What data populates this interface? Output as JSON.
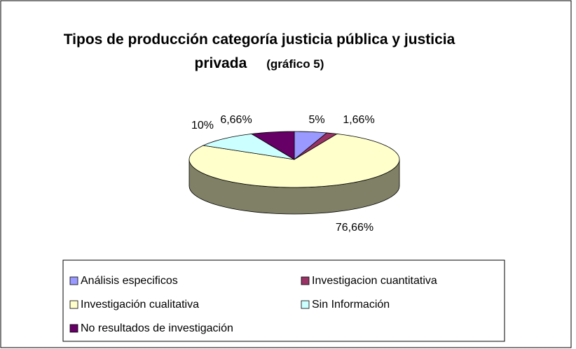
{
  "chart_data": {
    "type": "pie3d",
    "title": "Tipos de producción categoría justicia pública y justicia privada",
    "subtitle": "(gráfico 5)",
    "categories": [
      "Análisis especificos",
      "Investigacion cuantitativa",
      "Investigación cualitativa",
      "Sin Información",
      "No resultados de investigación"
    ],
    "values": [
      5,
      1.66,
      76.66,
      10,
      6.66
    ],
    "value_labels": [
      "5%",
      "1,66%",
      "76,66%",
      "10%",
      "6,66%"
    ],
    "colors": [
      "#9999ff",
      "#993366",
      "#ffffcc",
      "#ccffff",
      "#660066"
    ],
    "legend": "bottom"
  }
}
